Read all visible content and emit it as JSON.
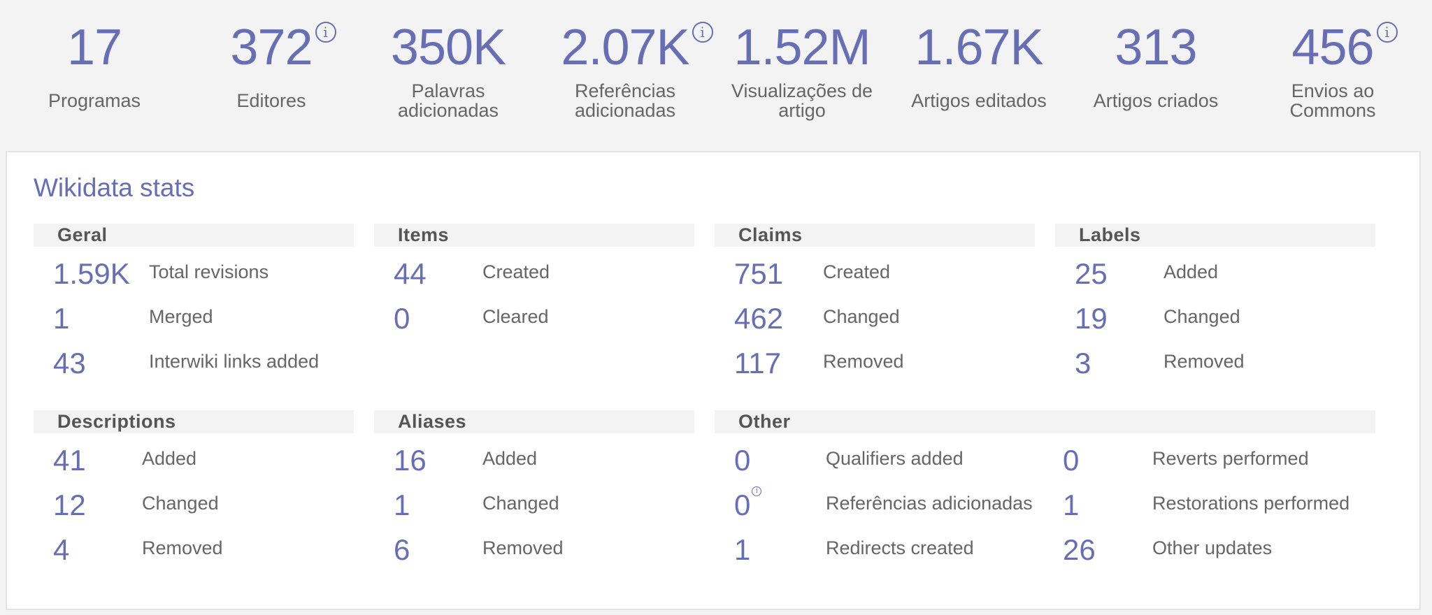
{
  "stats": [
    {
      "value": "17",
      "label_lines": [
        "Programas"
      ],
      "info": false
    },
    {
      "value": "372",
      "label_lines": [
        "Editores"
      ],
      "info": true
    },
    {
      "value": "350K",
      "label_lines": [
        "Palavras",
        "adicionadas"
      ],
      "info": false
    },
    {
      "value": "2.07K",
      "label_lines": [
        "Referências",
        "adicionadas"
      ],
      "info": true
    },
    {
      "value": "1.52M",
      "label_lines": [
        "Visualizações de",
        "artigo"
      ],
      "info": false
    },
    {
      "value": "1.67K",
      "label_lines": [
        "Artigos editados"
      ],
      "info": false
    },
    {
      "value": "313",
      "label_lines": [
        "Artigos criados"
      ],
      "info": false
    },
    {
      "value": "456",
      "label_lines": [
        "Envios ao",
        "Commons"
      ],
      "info": true
    }
  ],
  "info_glyph": "i",
  "wikidata": {
    "title": "Wikidata stats",
    "geral": {
      "heading": "Geral",
      "rows": [
        {
          "value": "1.59K",
          "label": "Total revisions"
        },
        {
          "value": "1",
          "label": "Merged"
        },
        {
          "value": "43",
          "label": "Interwiki links added"
        }
      ]
    },
    "items": {
      "heading": "Items",
      "rows": [
        {
          "value": "44",
          "label": "Created"
        },
        {
          "value": "0",
          "label": "Cleared"
        }
      ]
    },
    "claims": {
      "heading": "Claims",
      "rows": [
        {
          "value": "751",
          "label": "Created"
        },
        {
          "value": "462",
          "label": "Changed"
        },
        {
          "value": "117",
          "label": "Removed"
        }
      ]
    },
    "labels": {
      "heading": "Labels",
      "rows": [
        {
          "value": "25",
          "label": "Added"
        },
        {
          "value": "19",
          "label": "Changed"
        },
        {
          "value": "3",
          "label": "Removed"
        }
      ]
    },
    "descriptions": {
      "heading": "Descriptions",
      "rows": [
        {
          "value": "41",
          "label": "Added"
        },
        {
          "value": "12",
          "label": "Changed"
        },
        {
          "value": "4",
          "label": "Removed"
        }
      ]
    },
    "aliases": {
      "heading": "Aliases",
      "rows": [
        {
          "value": "16",
          "label": "Added"
        },
        {
          "value": "1",
          "label": "Changed"
        },
        {
          "value": "6",
          "label": "Removed"
        }
      ]
    },
    "other": {
      "heading": "Other",
      "left_rows": [
        {
          "value": "0",
          "label": "Qualifiers added"
        },
        {
          "value": "0",
          "label": "Referências adicionadas",
          "info": true
        },
        {
          "value": "1",
          "label": "Redirects created"
        }
      ],
      "right_rows": [
        {
          "value": "0",
          "label": "Reverts performed"
        },
        {
          "value": "1",
          "label": "Restorations performed"
        },
        {
          "value": "26",
          "label": "Other updates"
        }
      ]
    }
  },
  "colors": {
    "accent": "#676eb4",
    "background": "#f3f3f3",
    "panel": "#ffffff",
    "text": "#666666"
  }
}
